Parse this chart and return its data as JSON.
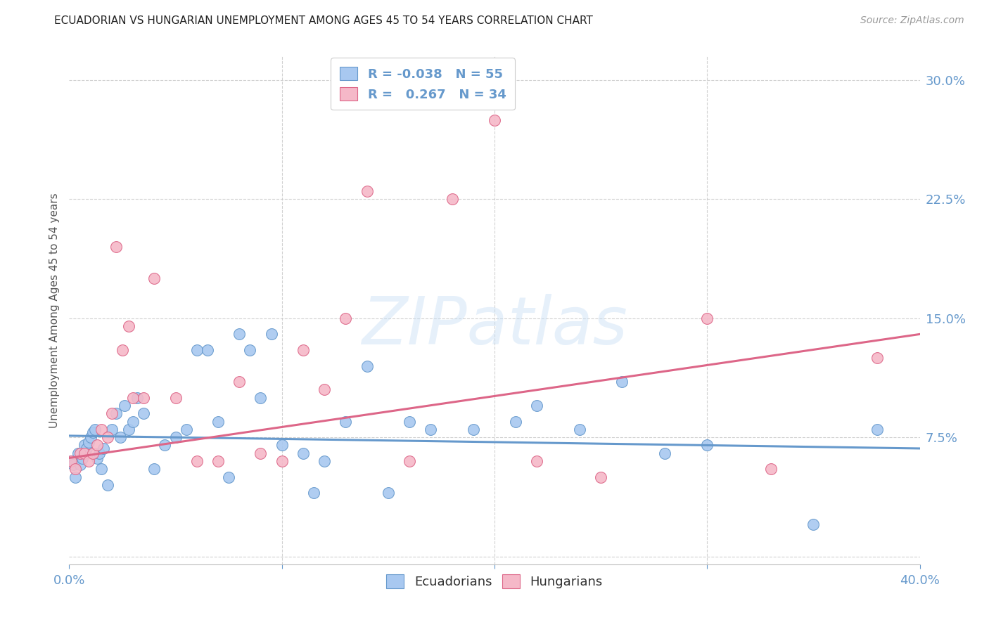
{
  "title": "ECUADORIAN VS HUNGARIAN UNEMPLOYMENT AMONG AGES 45 TO 54 YEARS CORRELATION CHART",
  "source": "Source: ZipAtlas.com",
  "ylabel": "Unemployment Among Ages 45 to 54 years",
  "xlim": [
    0.0,
    0.4
  ],
  "ylim": [
    -0.005,
    0.315
  ],
  "xticks": [
    0.0,
    0.1,
    0.2,
    0.3,
    0.4
  ],
  "xtick_labels": [
    "0.0%",
    "",
    "",
    "",
    "40.0%"
  ],
  "yticks": [
    0.0,
    0.075,
    0.15,
    0.225,
    0.3
  ],
  "ytick_labels": [
    "",
    "7.5%",
    "15.0%",
    "22.5%",
    "30.0%"
  ],
  "background_color": "#ffffff",
  "grid_color": "#cccccc",
  "blue_color": "#a8c8f0",
  "pink_color": "#f5b8c8",
  "blue_line_color": "#6699cc",
  "pink_line_color": "#dd6688",
  "legend_R_blue": "-0.038",
  "legend_N_blue": "55",
  "legend_R_pink": "0.267",
  "legend_N_pink": "34",
  "ecu_x": [
    0.001,
    0.002,
    0.003,
    0.004,
    0.005,
    0.006,
    0.007,
    0.008,
    0.009,
    0.01,
    0.011,
    0.012,
    0.013,
    0.014,
    0.015,
    0.016,
    0.018,
    0.02,
    0.022,
    0.024,
    0.026,
    0.028,
    0.03,
    0.032,
    0.035,
    0.04,
    0.045,
    0.05,
    0.055,
    0.06,
    0.065,
    0.07,
    0.075,
    0.08,
    0.085,
    0.09,
    0.095,
    0.1,
    0.11,
    0.115,
    0.12,
    0.13,
    0.14,
    0.15,
    0.16,
    0.17,
    0.19,
    0.21,
    0.22,
    0.24,
    0.26,
    0.28,
    0.3,
    0.35,
    0.38
  ],
  "ecu_y": [
    0.06,
    0.058,
    0.05,
    0.065,
    0.058,
    0.062,
    0.07,
    0.068,
    0.072,
    0.075,
    0.078,
    0.08,
    0.062,
    0.065,
    0.055,
    0.068,
    0.045,
    0.08,
    0.09,
    0.075,
    0.095,
    0.08,
    0.085,
    0.1,
    0.09,
    0.055,
    0.07,
    0.075,
    0.08,
    0.13,
    0.13,
    0.085,
    0.05,
    0.14,
    0.13,
    0.1,
    0.14,
    0.07,
    0.065,
    0.04,
    0.06,
    0.085,
    0.12,
    0.04,
    0.085,
    0.08,
    0.08,
    0.085,
    0.095,
    0.08,
    0.11,
    0.065,
    0.07,
    0.02,
    0.08
  ],
  "hun_x": [
    0.001,
    0.003,
    0.005,
    0.007,
    0.009,
    0.011,
    0.013,
    0.015,
    0.018,
    0.02,
    0.022,
    0.025,
    0.028,
    0.03,
    0.035,
    0.04,
    0.05,
    0.06,
    0.07,
    0.08,
    0.09,
    0.1,
    0.11,
    0.12,
    0.13,
    0.14,
    0.16,
    0.18,
    0.2,
    0.22,
    0.25,
    0.3,
    0.33,
    0.38
  ],
  "hun_y": [
    0.06,
    0.055,
    0.065,
    0.065,
    0.06,
    0.065,
    0.07,
    0.08,
    0.075,
    0.09,
    0.195,
    0.13,
    0.145,
    0.1,
    0.1,
    0.175,
    0.1,
    0.06,
    0.06,
    0.11,
    0.065,
    0.06,
    0.13,
    0.105,
    0.15,
    0.23,
    0.06,
    0.225,
    0.275,
    0.06,
    0.05,
    0.15,
    0.055,
    0.125
  ],
  "blue_trend_y_start": 0.076,
  "blue_trend_y_end": 0.068,
  "pink_trend_y_start": 0.062,
  "pink_trend_y_end": 0.14,
  "tick_color": "#6699cc",
  "ylabel_color": "#555555",
  "title_color": "#222222",
  "source_color": "#999999",
  "watermark_text": "ZIPatlas",
  "watermark_color": "#ddeeff",
  "legend_text_color": "#6699cc"
}
